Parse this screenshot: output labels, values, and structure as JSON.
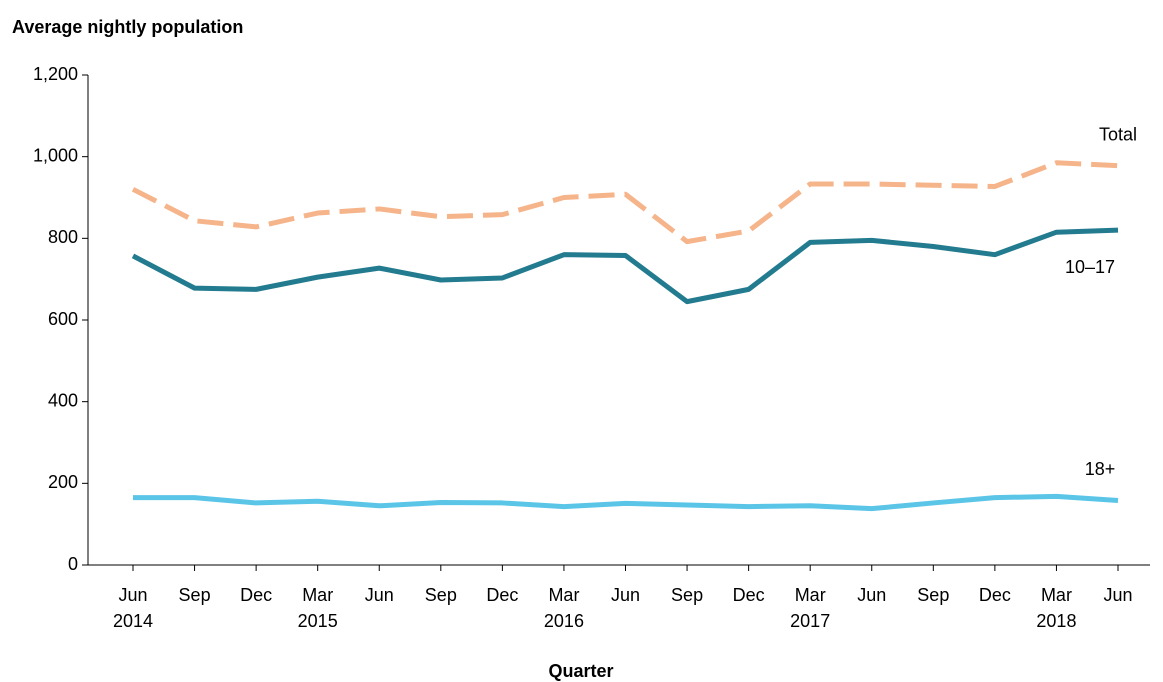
{
  "chart_data": {
    "type": "line",
    "y_axis_title": "Average nightly population",
    "x_axis_title": "Quarter",
    "categories": [
      "Jun\n2014",
      "Sep",
      "Dec",
      "Mar\n2015",
      "Jun",
      "Sep",
      "Dec",
      "Mar\n2016",
      "Jun",
      "Sep",
      "Dec",
      "Mar\n2017",
      "Jun",
      "Sep",
      "Dec",
      "Mar\n2018",
      "Jun"
    ],
    "series": [
      {
        "name": "Total",
        "color": "#f5b48a",
        "dashed": true,
        "values": [
          920,
          843,
          828,
          862,
          872,
          853,
          858,
          900,
          908,
          792,
          818,
          933,
          933,
          930,
          927,
          985,
          978
        ]
      },
      {
        "name": "10–17",
        "color": "#237b8f",
        "dashed": false,
        "values": [
          757,
          678,
          675,
          705,
          727,
          698,
          703,
          760,
          758,
          645,
          675,
          790,
          795,
          780,
          760,
          815,
          820
        ]
      },
      {
        "name": "18+",
        "color": "#5bc5e8",
        "dashed": false,
        "values": [
          165,
          165,
          152,
          156,
          145,
          153,
          152,
          143,
          151,
          147,
          143,
          145,
          138,
          152,
          165,
          168,
          158
        ]
      }
    ],
    "ylim": [
      0,
      1200
    ],
    "yticks": [
      0,
      200,
      400,
      600,
      800,
      {
        "value": 1000,
        "label": "1,000"
      },
      {
        "value": 1200,
        "label": "1,200"
      }
    ]
  }
}
